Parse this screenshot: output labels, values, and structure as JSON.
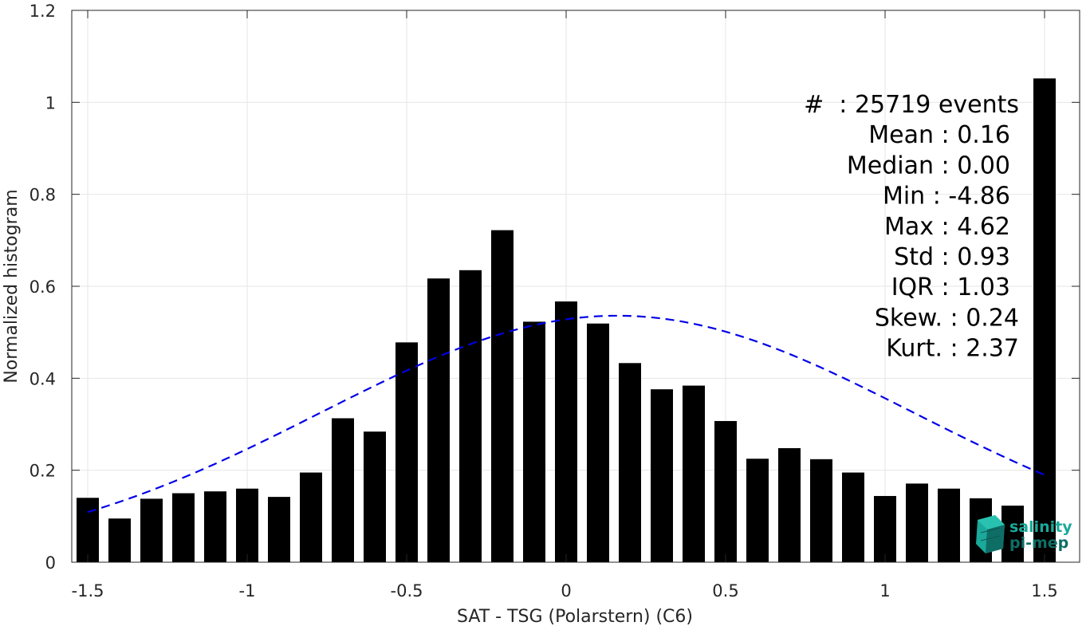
{
  "chart_data": {
    "type": "bar",
    "title": "",
    "xlabel": "SAT - TSG (Polarstern) (C6)",
    "ylabel": "Normalized histogram",
    "xlim": [
      -1.55,
      1.61
    ],
    "ylim": [
      0,
      1.2
    ],
    "xticks": [
      -1.5,
      -1,
      -0.5,
      0,
      0.5,
      1,
      1.5
    ],
    "xtick_labels": [
      "-1.5",
      "-1",
      "-0.5",
      "0",
      "0.5",
      "1",
      "1.5"
    ],
    "yticks": [
      0,
      0.2,
      0.4,
      0.6,
      0.8,
      1,
      1.2
    ],
    "ytick_labels": [
      "0",
      "0.2",
      "0.4",
      "0.6",
      "0.8",
      "1",
      "1.2"
    ],
    "grid": true,
    "bar_width": 0.07,
    "bar_color": "#000000",
    "curve_color": "#0000e6",
    "x": [
      -1.5,
      -1.4,
      -1.3,
      -1.2,
      -1.1,
      -1.0,
      -0.9,
      -0.8,
      -0.7,
      -0.6,
      -0.5,
      -0.4,
      -0.3,
      -0.2,
      -0.1,
      0.0,
      0.1,
      0.2,
      0.3,
      0.4,
      0.5,
      0.6,
      0.7,
      0.8,
      0.9,
      1.0,
      1.1,
      1.2,
      1.3,
      1.4,
      1.5
    ],
    "values": [
      0.14,
      0.095,
      0.138,
      0.15,
      0.154,
      0.16,
      0.142,
      0.195,
      0.313,
      0.284,
      0.478,
      0.617,
      0.635,
      0.722,
      0.523,
      0.567,
      0.519,
      0.433,
      0.376,
      0.384,
      0.307,
      0.225,
      0.248,
      0.224,
      0.195,
      0.144,
      0.171,
      0.16,
      0.139,
      0.123,
      1.052
    ],
    "gaussian_fit": {
      "style": "dashed",
      "x_range": [
        -1.5,
        1.5
      ],
      "mean": 0.16,
      "std": 0.93,
      "amplitude": 0.536
    },
    "stats": [
      {
        "label": "#  : 25719 events"
      },
      {
        "label": "Mean : 0.16"
      },
      {
        "label": "Median : 0.00"
      },
      {
        "label": "Min : -4.86"
      },
      {
        "label": "Max : 4.62"
      },
      {
        "label": "Std : 0.93"
      },
      {
        "label": "IQR : 1.03"
      },
      {
        "label": "Skew. : 0.24"
      },
      {
        "label": "Kurt. : 2.37"
      }
    ]
  },
  "logo": {
    "line1": "salinity",
    "line2": "pi-mep",
    "color": "#1aa99a",
    "dark_color": "#0e6e66"
  }
}
